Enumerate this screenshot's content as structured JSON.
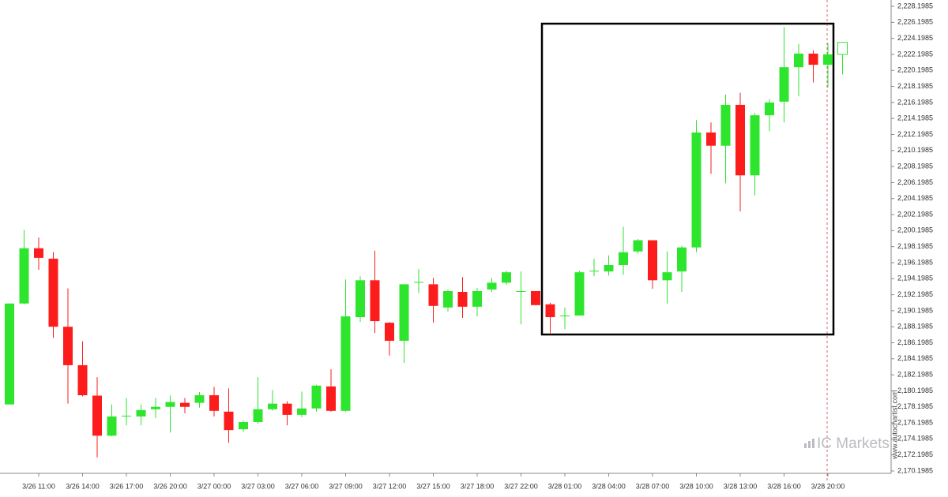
{
  "chart_data": {
    "type": "candlestick",
    "categories": [
      null,
      null,
      "3/26 11:00",
      null,
      null,
      "3/26 14:00",
      null,
      null,
      "3/26 17:00",
      null,
      null,
      "3/26 20:00",
      null,
      null,
      "3/27 00:00",
      null,
      null,
      "3/27 03:00",
      null,
      null,
      "3/27 06:00",
      null,
      null,
      "3/27 09:00",
      null,
      null,
      "3/27 12:00",
      null,
      null,
      "3/27 15:00",
      null,
      null,
      "3/27 18:00",
      null,
      null,
      "3/27 22:00",
      null,
      null,
      "3/28 01:00",
      null,
      null,
      "3/28 04:00",
      null,
      null,
      "3/28 07:00",
      null,
      null,
      "3/28 10:00",
      null,
      null,
      "3/28 13:00",
      null,
      null,
      "3/28 16:00",
      null,
      null,
      "3/28 20:00",
      null
    ],
    "open": [
      2178.5,
      2191.1,
      2198.0,
      2196.7,
      2188.2,
      2183.4,
      2179.6,
      2174.6,
      2177.0,
      2177.0,
      2177.9,
      2178.2,
      2178.7,
      2178.7,
      2179.65,
      2177.6,
      2175.4,
      2176.3,
      2177.9,
      2178.6,
      2177.2,
      2178.0,
      2180.75,
      2177.7,
      2189.4,
      2194.0,
      2188.7,
      2186.45,
      2193.7,
      2193.5,
      2190.6,
      2192.55,
      2190.7,
      2192.85,
      2193.7,
      2192.55,
      2192.65,
      2191.0,
      2189.5,
      2189.6,
      2195.1,
      2195.1,
      2195.9,
      2197.6,
      2199.0,
      2194.0,
      2195.1,
      2198.1,
      2212.45,
      2210.8,
      2215.9,
      2207.1,
      2214.6,
      2216.3,
      2220.6,
      2222.3,
      2220.9,
      2222.2
    ],
    "high": [
      2191.1,
      2200.3,
      2199.35,
      2197.5,
      2193.0,
      2186.4,
      2181.9,
      2178.5,
      2179.3,
      2178.5,
      2179.3,
      2179.6,
      2179.3,
      2180.05,
      2180.7,
      2180.5,
      2176.5,
      2181.9,
      2180.3,
      2178.9,
      2180.1,
      2180.95,
      2182.9,
      2194.1,
      2194.5,
      2197.7,
      2188.8,
      2193.5,
      2195.4,
      2194.3,
      2192.85,
      2194.4,
      2193.05,
      2194.3,
      2195.2,
      2195.1,
      2192.65,
      2191.2,
      2190.6,
      2195.2,
      2196.7,
      2197.1,
      2200.7,
      2199.15,
      2199.0,
      2197.6,
      2198.3,
      2214.0,
      2213.7,
      2217.2,
      2217.4,
      2214.9,
      2216.6,
      2225.6,
      2223.5,
      2222.7,
      2223.6,
      2223.7
    ],
    "low": [
      2178.5,
      2191.0,
      2195.3,
      2186.8,
      2178.6,
      2179.5,
      2171.9,
      2174.5,
      2175.9,
      2175.9,
      2176.8,
      2175.0,
      2177.4,
      2178.1,
      2177.0,
      2173.7,
      2175.1,
      2176.1,
      2177.7,
      2175.9,
      2176.9,
      2177.6,
      2177.6,
      2177.6,
      2188.8,
      2187.4,
      2184.6,
      2183.7,
      2192.4,
      2188.7,
      2190.1,
      2189.3,
      2189.5,
      2192.55,
      2193.45,
      2188.5,
      2190.9,
      2187.4,
      2187.9,
      2189.6,
      2194.5,
      2194.6,
      2194.7,
      2197.3,
      2192.95,
      2191.1,
      2192.55,
      2197.5,
      2207.3,
      2206.1,
      2202.6,
      2204.6,
      2212.6,
      2213.7,
      2217.0,
      2218.7,
      2218.1,
      2219.7
    ],
    "close": [
      2191.1,
      2198.0,
      2196.8,
      2188.2,
      2183.4,
      2179.65,
      2174.6,
      2177.0,
      2177.1,
      2177.8,
      2178.2,
      2178.8,
      2178.2,
      2179.65,
      2177.7,
      2175.3,
      2176.3,
      2177.9,
      2178.6,
      2177.2,
      2178.0,
      2180.85,
      2177.7,
      2189.5,
      2194.0,
      2188.9,
      2186.45,
      2193.5,
      2193.8,
      2190.8,
      2192.65,
      2190.7,
      2192.65,
      2193.7,
      2195.0,
      2192.65,
      2190.9,
      2189.4,
      2189.6,
      2195.0,
      2195.2,
      2195.9,
      2197.5,
      2199.0,
      2194.0,
      2195.0,
      2198.1,
      2212.45,
      2210.8,
      2215.9,
      2207.1,
      2214.6,
      2216.2,
      2220.6,
      2222.3,
      2220.9,
      2222.2,
      2223.7
    ],
    "up_color": "#2ee52e",
    "down_color": "#fc1c1c",
    "last_candle_hollow": true,
    "ylim": [
      2169.9,
      2228.99
    ],
    "yticks": [
      {
        "value": 2170.1985,
        "label": "2,170.1985"
      },
      {
        "value": 2172.1985,
        "label": "2,172.1985"
      },
      {
        "value": 2174.1985,
        "label": "2,174.1985"
      },
      {
        "value": 2176.1985,
        "label": "2,176.1985"
      },
      {
        "value": 2178.1985,
        "label": "2,178.1985"
      },
      {
        "value": 2180.1985,
        "label": "2,180.1985"
      },
      {
        "value": 2182.1985,
        "label": "2,182.1985"
      },
      {
        "value": 2184.1985,
        "label": "2,184.1985"
      },
      {
        "value": 2186.1985,
        "label": "2,186.1985"
      },
      {
        "value": 2188.1985,
        "label": "2,188.1985"
      },
      {
        "value": 2190.1985,
        "label": "2,190.1985"
      },
      {
        "value": 2192.1985,
        "label": "2,192.1985"
      },
      {
        "value": 2194.1985,
        "label": "2,194.1985"
      },
      {
        "value": 2196.1985,
        "label": "2,196.1985"
      },
      {
        "value": 2198.1985,
        "label": "2,198.1985"
      },
      {
        "value": 2200.1985,
        "label": "2,200.1985"
      },
      {
        "value": 2202.1985,
        "label": "2,202.1985"
      },
      {
        "value": 2204.1985,
        "label": "2,204.1985"
      },
      {
        "value": 2206.1985,
        "label": "2,206.1985"
      },
      {
        "value": 2208.1985,
        "label": "2,208.1985"
      },
      {
        "value": 2210.1985,
        "label": "2,210.1985"
      },
      {
        "value": 2212.1985,
        "label": "2,212.1985"
      },
      {
        "value": 2214.1985,
        "label": "2,214.1985"
      },
      {
        "value": 2216.1985,
        "label": "2,216.1985"
      },
      {
        "value": 2218.1985,
        "label": "2,218.1985"
      },
      {
        "value": 2220.1985,
        "label": "2,220.1985"
      },
      {
        "value": 2222.1985,
        "label": "2,222.1985"
      },
      {
        "value": 2224.1985,
        "label": "2,224.1985"
      },
      {
        "value": 2226.1985,
        "label": "2,226.1985"
      },
      {
        "value": 2228.1985,
        "label": "2,228.1985"
      }
    ],
    "grid": false,
    "watermark": "IC Markets",
    "source": "www.autochartist.com"
  }
}
